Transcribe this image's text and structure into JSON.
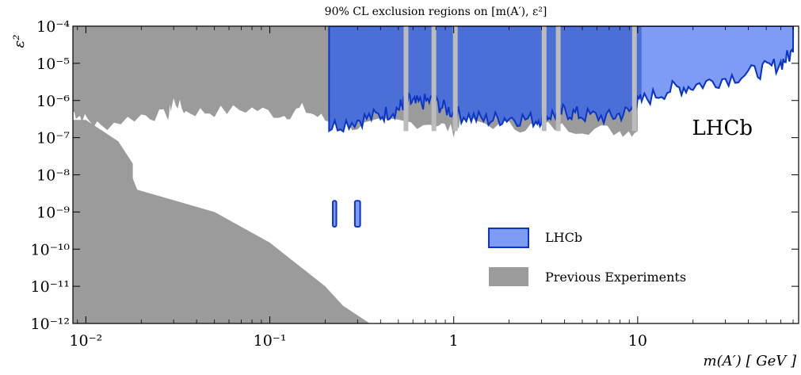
{
  "chart_data": {
    "type": "area",
    "title": "90% CL exclusion regions on [m(A′), ε²]",
    "xlabel": "m(A′)  [ GeV ]",
    "ylabel": "ε²",
    "x_scale": "log",
    "y_scale": "log",
    "xlim": [
      0.0085,
      75
    ],
    "ylim": [
      1e-12,
      0.0001
    ],
    "x_ticks": [
      {
        "value": 0.01,
        "label": "10⁻²"
      },
      {
        "value": 0.1,
        "label": "10⁻¹"
      },
      {
        "value": 1,
        "label": "1"
      },
      {
        "value": 10,
        "label": "10"
      }
    ],
    "y_ticks": [
      {
        "value": 0.0001,
        "label": "10⁻⁴"
      },
      {
        "value": 1e-05,
        "label": "10⁻⁵"
      },
      {
        "value": 1e-06,
        "label": "10⁻⁶"
      },
      {
        "value": 1e-07,
        "label": "10⁻⁷"
      },
      {
        "value": 1e-08,
        "label": "10⁻⁸"
      },
      {
        "value": 1e-09,
        "label": "10⁻⁹"
      },
      {
        "value": 1e-10,
        "label": "10⁻¹⁰"
      },
      {
        "value": 1e-11,
        "label": "10⁻¹¹"
      },
      {
        "value": 1e-12,
        "label": "10⁻¹²"
      }
    ],
    "grid": false,
    "legend_position": "lower-right",
    "annotation": "LHCb",
    "colors": {
      "lhcb_fill": "#7f9cf5",
      "lhcb_dark_fill": "#4a6fd6",
      "lhcb_edge": "#0a35c8",
      "previous_fill": "#9b9b9b",
      "previous_light": "#bcbcbc"
    },
    "series": [
      {
        "name": "Previous Experiments",
        "upper_region": {
          "x": [
            0.0085,
            0.0095,
            0.012,
            0.02,
            0.028,
            0.03,
            0.035,
            0.05,
            0.08,
            0.12,
            0.15,
            0.2,
            0.3,
            0.5,
            0.8,
            1.0,
            1.1,
            2,
            3,
            5,
            8,
            10
          ],
          "lower_edge": [
            5e-07,
            3.5e-07,
            2e-07,
            4e-07,
            4e-07,
            1e-06,
            5e-07,
            5e-07,
            6e-07,
            4e-07,
            6e-07,
            3e-07,
            2e-07,
            2.5e-07,
            2.5e-07,
            1.5e-07,
            3e-07,
            2e-07,
            2e-07,
            1.8e-07,
            1.5e-07,
            1.5e-07
          ]
        },
        "lower_region": {
          "x": [
            0.0085,
            0.01,
            0.015,
            0.018,
            0.018,
            0.019,
            0.05,
            0.1,
            0.2,
            0.25,
            0.35
          ],
          "upper_edge": [
            3e-07,
            3e-07,
            8e-08,
            2e-08,
            8e-09,
            4e-09,
            1e-09,
            1.5e-10,
            1e-11,
            3e-12,
            1e-12
          ]
        }
      },
      {
        "name": "LHCb",
        "x": [
          0.21,
          0.3,
          0.4,
          0.5,
          0.55,
          0.62,
          0.75,
          0.9,
          1.1,
          1.5,
          2.0,
          2.8,
          3.3,
          4.0,
          5.0,
          7.0,
          9.0,
          10.5,
          15,
          20,
          30,
          45,
          60,
          70
        ],
        "lower_edge": [
          2e-07,
          3e-07,
          4e-07,
          6e-07,
          1e-06,
          8e-07,
          1e-06,
          6e-07,
          4e-07,
          3e-07,
          3.5e-07,
          3e-07,
          4e-07,
          5e-07,
          4e-07,
          3.5e-07,
          5e-07,
          1e-06,
          2e-06,
          2.5e-06,
          4e-06,
          6e-06,
          1e-05,
          2e-05
        ],
        "islands": [
          {
            "x": [
              0.22,
              0.23
            ],
            "y": [
              4e-10,
              2e-09
            ]
          },
          {
            "x": [
              0.29,
              0.31
            ],
            "y": [
              4e-10,
              2e-09
            ]
          }
        ]
      }
    ]
  }
}
